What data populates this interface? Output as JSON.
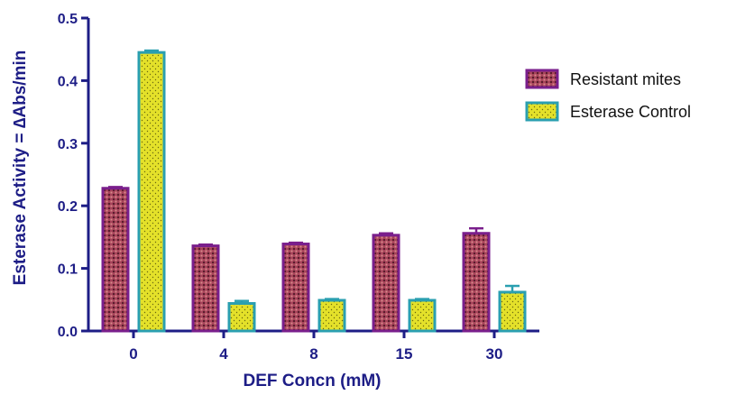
{
  "chart_data": {
    "type": "bar",
    "title": "",
    "xlabel": "DEF Concn (mM)",
    "ylabel": "Esterase Activity = ∆Abs/min",
    "categories": [
      "0",
      "4",
      "8",
      "15",
      "30"
    ],
    "ylim": [
      0,
      0.5
    ],
    "yticks": [
      "0.0",
      "0.1",
      "0.2",
      "0.3",
      "0.4",
      "0.5"
    ],
    "grid": false,
    "legend_position": "right",
    "series": [
      {
        "name": "Resistant mites",
        "values": [
          0.228,
          0.136,
          0.139,
          0.153,
          0.156
        ],
        "errors": [
          0.002,
          0.002,
          0.002,
          0.003,
          0.008
        ],
        "fill": "#a6435a",
        "outline": "#7a1f8c"
      },
      {
        "name": "Esterase Control",
        "values": [
          0.445,
          0.044,
          0.049,
          0.049,
          0.062
        ],
        "errors": [
          0.003,
          0.004,
          0.002,
          0.002,
          0.01
        ],
        "fill": "#e4e12a",
        "outline": "#2a9fb0"
      }
    ]
  },
  "colors": {
    "axis": "#1d1d86",
    "text": "#1d1d86"
  }
}
